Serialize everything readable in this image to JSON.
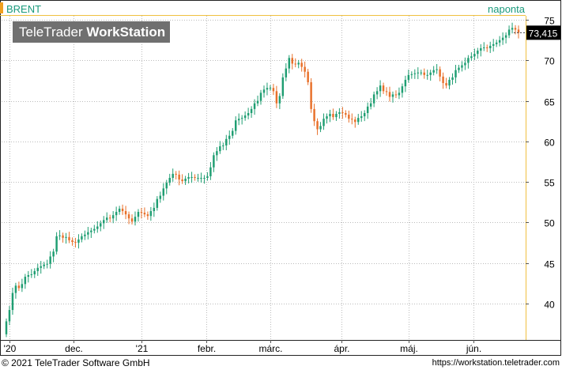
{
  "header": {
    "symbol": "BRENT",
    "period": "naponta"
  },
  "logo": {
    "brand": "TeleTrader",
    "product": "WorkStation"
  },
  "footer": {
    "copyright": "© 2021 TeleTrader Software GmbH",
    "url": "https://workstation.teletrader.com"
  },
  "colors": {
    "up": "#1f9e72",
    "down": "#e8702a",
    "accent": "#f0a020",
    "title": "#1a9a7c",
    "last_label_bg": "#000000"
  },
  "chart_data": {
    "type": "candlestick",
    "title": "BRENT",
    "last_value": "73,415",
    "y_ticks": [
      40,
      45,
      50,
      55,
      60,
      65,
      70,
      75
    ],
    "ylim": [
      35.5,
      75.5
    ],
    "x_ticks": [
      "'20",
      "dec.",
      "'21",
      "febr.",
      "márc.",
      "ápr.",
      "máj.",
      "jún."
    ],
    "grid": true,
    "closes": [
      37.8,
      39.2,
      41.3,
      42.2,
      41.9,
      42.4,
      43.3,
      43.5,
      43.6,
      44.0,
      44.4,
      44.6,
      44.8,
      44.9,
      45.8,
      46.4,
      48.3,
      48.4,
      48.1,
      48.2,
      47.8,
      47.6,
      47.5,
      47.9,
      48.3,
      48.5,
      48.8,
      49.0,
      49.2,
      49.5,
      49.9,
      50.3,
      50.6,
      50.5,
      50.9,
      51.3,
      51.7,
      51.4,
      51.0,
      50.5,
      50.1,
      50.7,
      51.3,
      51.2,
      51.0,
      50.8,
      51.4,
      51.8,
      52.9,
      53.3,
      54.2,
      54.9,
      55.5,
      56.0,
      55.9,
      55.3,
      55.1,
      55.4,
      55.6,
      55.6,
      55.5,
      55.5,
      55.5,
      55.5,
      55.7,
      56.8,
      58.3,
      58.8,
      59.4,
      59.5,
      60.3,
      60.7,
      61.3,
      62.6,
      62.8,
      62.9,
      63.2,
      63.5,
      64.0,
      64.7,
      65.0,
      66.0,
      66.4,
      66.6,
      66.6,
      66.2,
      64.7,
      65.6,
      67.9,
      69.0,
      70.3,
      69.6,
      69.5,
      69.7,
      69.2,
      68.6,
      67.3,
      64.0,
      62.5,
      61.5,
      61.9,
      62.8,
      63.1,
      63.4,
      63.0,
      63.4,
      63.6,
      63.5,
      63.3,
      62.8,
      62.7,
      62.4,
      62.9,
      63.1,
      63.5,
      64.3,
      64.7,
      65.8,
      66.2,
      66.9,
      66.2,
      66.1,
      65.5,
      65.8,
      65.7,
      66.0,
      66.8,
      67.6,
      68.2,
      68.3,
      68.4,
      68.5,
      68.5,
      68.2,
      68.2,
      68.5,
      68.8,
      68.9,
      68.0,
      67.2,
      66.9,
      67.6,
      67.9,
      68.8,
      69.1,
      69.4,
      69.7,
      70.3,
      70.5,
      70.8,
      71.2,
      71.5,
      71.6,
      71.5,
      71.8,
      72.0,
      72.2,
      72.5,
      72.8,
      73.1,
      73.8,
      74.0,
      73.8,
      73.415
    ]
  }
}
